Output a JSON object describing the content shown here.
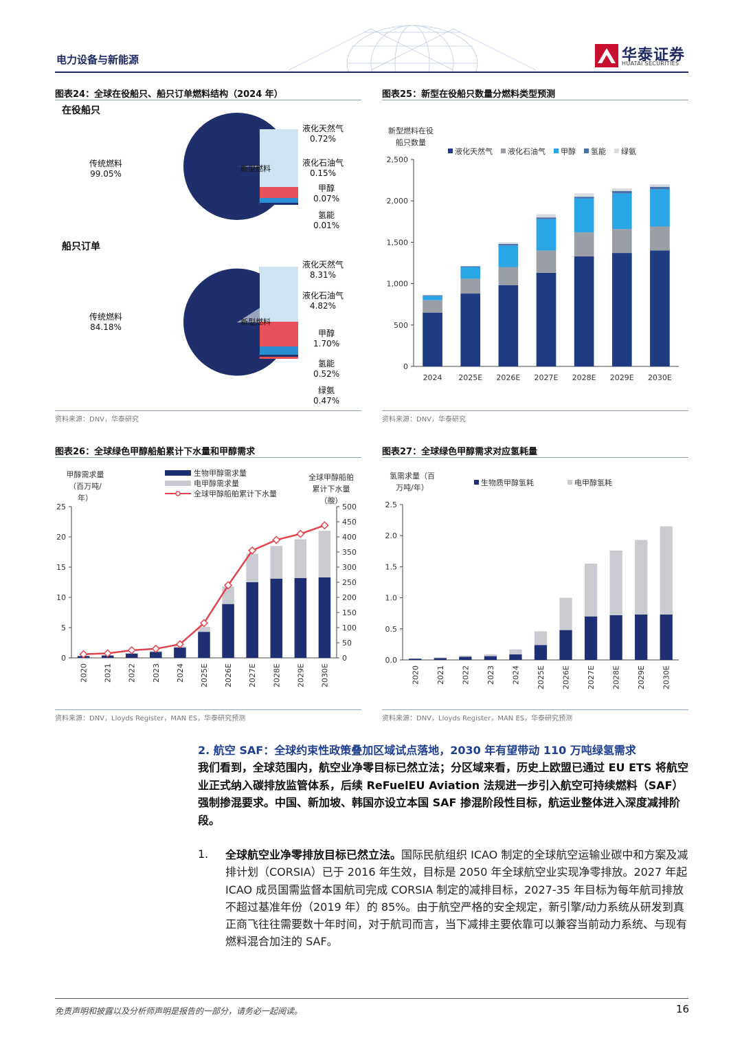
{
  "header": {
    "section_label": "电力设备与新能源",
    "logo_cn": "华泰证券",
    "logo_en": "HUATAI SECURITIES"
  },
  "fig24": {
    "title": "图表24：全球在役船只、船只订单燃料结构（2024 年）",
    "subtitle_inservice": "在役船只",
    "subtitle_orders": "船只订单",
    "source": "资料来源：DNV，华泰研究",
    "inservice": {
      "traditional_label": "传统燃料",
      "traditional_pct": "99.05%",
      "new_label": "新型燃料",
      "items": [
        {
          "label": "液化天然气",
          "pct": "0.72%"
        },
        {
          "label": "液化石油气",
          "pct": "0.15%"
        },
        {
          "label": "甲醇",
          "pct": "0.07%"
        },
        {
          "label": "氢能",
          "pct": "0.01%"
        }
      ]
    },
    "orders": {
      "traditional_label": "传统燃料",
      "traditional_pct": "84.18%",
      "new_label": "新型燃料",
      "items": [
        {
          "label": "液化天然气",
          "pct": "8.31%"
        },
        {
          "label": "液化石油气",
          "pct": "4.82%"
        },
        {
          "label": "甲醇",
          "pct": "1.70%"
        },
        {
          "label": "氢能",
          "pct": "0.52%"
        },
        {
          "label": "绿氨",
          "pct": "0.47%"
        }
      ]
    }
  },
  "fig25": {
    "title": "图表25：新型在役船只数量分燃料类型预测",
    "source": "资料来源：DNV，华泰研究"
  },
  "fig26": {
    "title": "图表26：全球绿色甲醇船舶累计下水量和甲醇需求",
    "source": "资料来源：DNV，Lloyds Register，MAN ES，华泰研究预测"
  },
  "fig27": {
    "title": "图表27：全球绿色甲醇需求对应氢耗量",
    "source": "资料来源：DNV，Lloyds Register，MAN ES，华泰研究预测"
  },
  "chart_data": [
    {
      "id": "fig24_inservice",
      "type": "pie",
      "labels": [
        "传统燃料",
        "新型燃料"
      ],
      "values": [
        99.05,
        0.95
      ],
      "breakdown_labels": [
        "液化天然气",
        "液化石油气",
        "甲醇",
        "氢能"
      ],
      "breakdown_values": [
        0.72,
        0.15,
        0.07,
        0.01
      ]
    },
    {
      "id": "fig24_orders",
      "type": "pie",
      "labels": [
        "传统燃料",
        "新型燃料"
      ],
      "values": [
        84.18,
        15.82
      ],
      "breakdown_labels": [
        "液化天然气",
        "液化石油气",
        "甲醇",
        "氢能",
        "绿氨"
      ],
      "breakdown_values": [
        8.31,
        4.82,
        1.7,
        0.52,
        0.47
      ]
    },
    {
      "id": "fig25",
      "type": "bar",
      "stacked": true,
      "ylabel_lines": [
        "新型燃料在役",
        "船只数量"
      ],
      "categories": [
        "2024",
        "2025E",
        "2026E",
        "2027E",
        "2028E",
        "2029E",
        "2030E"
      ],
      "ylim": [
        0,
        2500
      ],
      "yticks": [
        0,
        500,
        1000,
        1500,
        2000,
        2500
      ],
      "ytick_labels": [
        "0",
        "500",
        "1,000",
        "1,500",
        "2,000",
        "2,500"
      ],
      "series": [
        {
          "name": "液化天然气",
          "color": "#1f3b82",
          "values": [
            650,
            880,
            980,
            1130,
            1330,
            1370,
            1400
          ]
        },
        {
          "name": "液化石油气",
          "color": "#9a9ea6",
          "values": [
            150,
            180,
            220,
            270,
            290,
            290,
            290
          ]
        },
        {
          "name": "甲醇",
          "color": "#2aa5e6",
          "values": [
            50,
            140,
            260,
            380,
            410,
            430,
            450
          ]
        },
        {
          "name": "氢能",
          "color": "#4d6fa8",
          "values": [
            10,
            10,
            20,
            20,
            20,
            30,
            30
          ]
        },
        {
          "name": "绿氨",
          "color": "#d8dbe0",
          "values": [
            0,
            0,
            20,
            40,
            40,
            30,
            30
          ]
        }
      ]
    },
    {
      "id": "fig26",
      "type": "bar",
      "stacked": true,
      "ylabel_lines": [
        "甲醇需求量",
        "（百万吨/",
        "年）"
      ],
      "y2label_lines": [
        "全球甲醇船舶",
        "累计下水量",
        "（艘）"
      ],
      "categories": [
        "2020",
        "2021",
        "2022",
        "2023",
        "2024",
        "2025E",
        "2026E",
        "2027E",
        "2028E",
        "2029E",
        "2030E"
      ],
      "ylim": [
        0,
        25
      ],
      "yticks": [
        0,
        5,
        10,
        15,
        20,
        25
      ],
      "y2lim": [
        0,
        500
      ],
      "y2ticks": [
        0,
        50,
        100,
        150,
        200,
        250,
        300,
        350,
        400,
        450,
        500
      ],
      "series": [
        {
          "name": "生物甲醇需求量",
          "color": "#1f2f73",
          "values": [
            0.3,
            0.4,
            0.7,
            1.0,
            1.7,
            4.3,
            8.9,
            12.5,
            13.1,
            13.2,
            13.3
          ]
        },
        {
          "name": "电甲醇需求量",
          "color": "#c9cbd0",
          "values": [
            0.0,
            0.0,
            0.1,
            0.1,
            0.2,
            0.8,
            2.9,
            4.7,
            5.4,
            6.4,
            7.7
          ]
        }
      ],
      "line": {
        "name": "全球甲醇船舶累计下水量",
        "color": "#e0454e",
        "values": [
          12,
          15,
          25,
          30,
          45,
          115,
          240,
          355,
          390,
          410,
          438
        ]
      }
    },
    {
      "id": "fig27",
      "type": "bar",
      "stacked": true,
      "ylabel_lines": [
        "氢需求量（百",
        "万吨/年）"
      ],
      "categories": [
        "2020",
        "2021",
        "2022",
        "2023",
        "2024",
        "2025E",
        "2026E",
        "2027E",
        "2028E",
        "2029E",
        "2030E"
      ],
      "ylim": [
        0,
        2.5
      ],
      "yticks": [
        0,
        0.5,
        1.0,
        1.5,
        2.0,
        2.5
      ],
      "ytick_labels": [
        "0.0",
        "0.5",
        "1.0",
        "1.5",
        "2.0",
        "2.5"
      ],
      "series": [
        {
          "name": "生物质甲醇氢耗",
          "color": "#1f2f73",
          "values": [
            0.02,
            0.03,
            0.05,
            0.06,
            0.09,
            0.24,
            0.48,
            0.7,
            0.72,
            0.73,
            0.73
          ]
        },
        {
          "name": "电甲醇氢耗",
          "color": "#c9cbd0",
          "values": [
            0.0,
            0.01,
            0.02,
            0.03,
            0.08,
            0.22,
            0.52,
            0.85,
            1.04,
            1.2,
            1.42
          ]
        }
      ]
    }
  ],
  "section": {
    "heading": "2. 航空 SAF：全球约束性政策叠加区域试点落地，2030 年有望带动 110 万吨绿氢需求",
    "summary": "我们看到，全球范围内，航空业净零目标已然立法；分区域来看，历史上欧盟已通过 EU ETS 将航空业正式纳入碳排放监管体系，后续 ReFuelEU Aviation 法规进一步引入航空可持续燃料（SAF）强制掺混要求。中国、新加坡、韩国亦设立本国 SAF 掺混阶段性目标，航运业整体进入深度减排阶段。",
    "item_num": "1.",
    "item_lead": "全球航空业净零排放目标已然立法。",
    "item_body": "国际民航组织 ICAO 制定的全球航空运输业碳中和方案及减排计划（CORSIA）已于 2016 年生效，目标是 2050 年全球航空业实现净零排放。2027 年起 ICAO 成员国需监督本国航司完成 CORSIA 制定的减排目标，2027-35 年目标为每年航司排放不超过基准年份（2019 年）的 85%。由于航空严格的安全规定，新引擎/动力系统从研发到真正商飞往往需要数十年时间，对于航司而言，当下减排主要依靠可以兼容当前动力系统、与现有燃料混合加注的 SAF。"
  },
  "footer": {
    "disclaimer": "免责声明和披露以及分析师声明是报告的一部分，请务必一起阅读。",
    "page": "16"
  }
}
